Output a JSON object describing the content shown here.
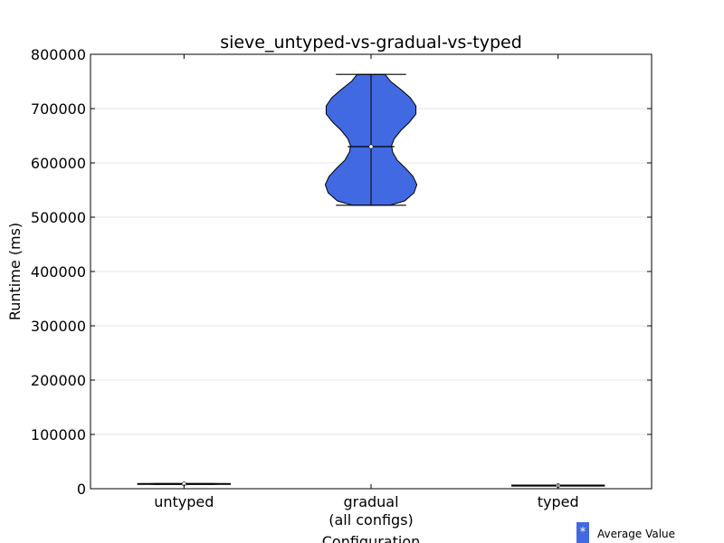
{
  "chart_data": {
    "type": "violin",
    "title": "sieve_untyped-vs-gradual-vs-typed",
    "xlabel": "Configuration",
    "ylabel": "Runtime (ms)",
    "ylim": [
      0,
      800000
    ],
    "yticks": [
      0,
      100000,
      200000,
      300000,
      400000,
      500000,
      600000,
      700000,
      800000
    ],
    "grid": true,
    "legend": {
      "position": "bottom-right",
      "marker": "*",
      "label": "Average Value"
    },
    "fill_color": "#4169e1",
    "categories": [
      {
        "label_lines": [
          "untyped"
        ],
        "min": 8000,
        "max": 9500,
        "mean": 8700
      },
      {
        "label_lines": [
          "gradual",
          "(all configs)"
        ],
        "min": 522000,
        "max": 763000,
        "mean": 630000
      },
      {
        "label_lines": [
          "typed"
        ],
        "min": 5000,
        "max": 6500,
        "mean": 5800
      }
    ],
    "gradual_density": [
      [
        522000,
        0.4
      ],
      [
        530000,
        0.72
      ],
      [
        545000,
        0.92
      ],
      [
        560000,
        0.98
      ],
      [
        575000,
        0.9
      ],
      [
        590000,
        0.74
      ],
      [
        605000,
        0.56
      ],
      [
        620000,
        0.46
      ],
      [
        632000,
        0.44
      ],
      [
        645000,
        0.5
      ],
      [
        660000,
        0.64
      ],
      [
        675000,
        0.82
      ],
      [
        690000,
        0.96
      ],
      [
        705000,
        0.96
      ],
      [
        720000,
        0.84
      ],
      [
        735000,
        0.64
      ],
      [
        750000,
        0.42
      ],
      [
        763000,
        0.3
      ]
    ]
  }
}
